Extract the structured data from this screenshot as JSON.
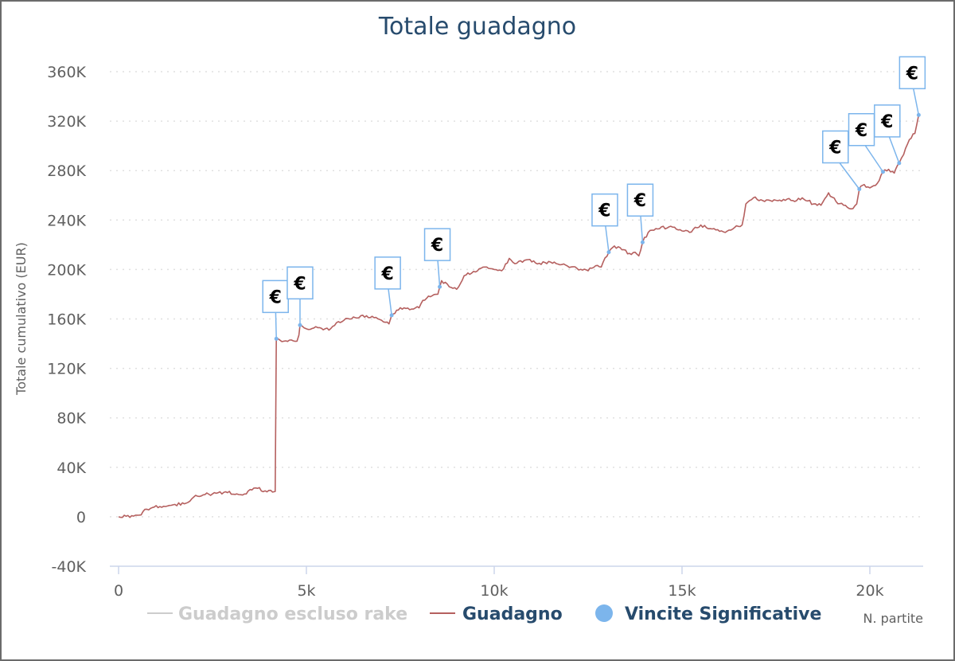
{
  "chart_data": {
    "type": "line",
    "title": "Totale guadagno",
    "ylabel": "Totale cumulativo (EUR)",
    "xlabel": "N. partite",
    "xlim": [
      0,
      21500
    ],
    "ylim": [
      -40000,
      360000
    ],
    "x_ticks": [
      0,
      5000,
      10000,
      15000,
      20000
    ],
    "x_tick_labels": [
      "0",
      "5k",
      "10k",
      "15k",
      "20k"
    ],
    "y_ticks": [
      -40000,
      0,
      40000,
      80000,
      120000,
      160000,
      200000,
      240000,
      280000,
      320000,
      360000
    ],
    "y_tick_labels": [
      "-40K",
      "0",
      "40K",
      "80K",
      "120K",
      "160K",
      "200K",
      "240K",
      "280K",
      "320K",
      "360K"
    ],
    "grid": true,
    "legend_position": "bottom",
    "series": [
      {
        "name": "Guadagno escluso rake",
        "color": "#cccccc",
        "visible": false,
        "points": []
      },
      {
        "name": "Guadagno",
        "color": "#b5605f",
        "visible": true,
        "points": [
          [
            0,
            0
          ],
          [
            400,
            500
          ],
          [
            600,
            1500
          ],
          [
            700,
            6000
          ],
          [
            900,
            7500
          ],
          [
            1200,
            8500
          ],
          [
            1500,
            10000
          ],
          [
            1800,
            11000
          ],
          [
            2000,
            16000
          ],
          [
            2300,
            18000
          ],
          [
            2600,
            19000
          ],
          [
            2900,
            19500
          ],
          [
            3200,
            18000
          ],
          [
            3400,
            18500
          ],
          [
            3500,
            22000
          ],
          [
            3700,
            23000
          ],
          [
            3900,
            21000
          ],
          [
            4100,
            20000
          ],
          [
            4170,
            20500
          ],
          [
            4200,
            144000
          ],
          [
            4400,
            142000
          ],
          [
            4600,
            143000
          ],
          [
            4750,
            142000
          ],
          [
            4800,
            147000
          ],
          [
            4830,
            155000
          ],
          [
            5000,
            152000
          ],
          [
            5300,
            153000
          ],
          [
            5600,
            151000
          ],
          [
            5800,
            157000
          ],
          [
            6000,
            159000
          ],
          [
            6200,
            160000
          ],
          [
            6500,
            163000
          ],
          [
            6800,
            161000
          ],
          [
            7000,
            159000
          ],
          [
            7200,
            156000
          ],
          [
            7270,
            163000
          ],
          [
            7400,
            167000
          ],
          [
            7600,
            169000
          ],
          [
            7800,
            168000
          ],
          [
            8000,
            169000
          ],
          [
            8100,
            175000
          ],
          [
            8300,
            178000
          ],
          [
            8500,
            180000
          ],
          [
            8550,
            186000
          ],
          [
            8600,
            191000
          ],
          [
            8800,
            186000
          ],
          [
            9000,
            184000
          ],
          [
            9200,
            195000
          ],
          [
            9500,
            198000
          ],
          [
            9800,
            202000
          ],
          [
            10000,
            200000
          ],
          [
            10200,
            199000
          ],
          [
            10400,
            209000
          ],
          [
            10600,
            205000
          ],
          [
            10900,
            208000
          ],
          [
            11200,
            205000
          ],
          [
            11500,
            206000
          ],
          [
            11800,
            204000
          ],
          [
            12200,
            201000
          ],
          [
            12500,
            199000
          ],
          [
            12700,
            203000
          ],
          [
            12850,
            202000
          ],
          [
            12900,
            206000
          ],
          [
            13050,
            214000
          ],
          [
            13200,
            219000
          ],
          [
            13400,
            216000
          ],
          [
            13600,
            213000
          ],
          [
            13750,
            214000
          ],
          [
            13850,
            211000
          ],
          [
            13950,
            222000
          ],
          [
            14100,
            230000
          ],
          [
            14400,
            233000
          ],
          [
            14700,
            235000
          ],
          [
            14900,
            232000
          ],
          [
            15200,
            230000
          ],
          [
            15500,
            236000
          ],
          [
            15700,
            233000
          ],
          [
            15900,
            232000
          ],
          [
            16200,
            231000
          ],
          [
            16400,
            234000
          ],
          [
            16600,
            236000
          ],
          [
            16700,
            253000
          ],
          [
            16900,
            258000
          ],
          [
            17200,
            255000
          ],
          [
            17500,
            256000
          ],
          [
            17800,
            257000
          ],
          [
            18000,
            255000
          ],
          [
            18200,
            258000
          ],
          [
            18500,
            253000
          ],
          [
            18700,
            252000
          ],
          [
            18900,
            262000
          ],
          [
            19100,
            255000
          ],
          [
            19300,
            252000
          ],
          [
            19500,
            249000
          ],
          [
            19650,
            253000
          ],
          [
            19720,
            265000
          ],
          [
            19800,
            268000
          ],
          [
            20000,
            266000
          ],
          [
            20150,
            268000
          ],
          [
            20250,
            272000
          ],
          [
            20350,
            279000
          ],
          [
            20500,
            281000
          ],
          [
            20650,
            278000
          ],
          [
            20780,
            286000
          ],
          [
            20900,
            293000
          ],
          [
            21050,
            305000
          ],
          [
            21200,
            310000
          ],
          [
            21300,
            325000
          ]
        ]
      },
      {
        "name": "Vincite Significative",
        "color": "#7cb5ec",
        "visible": true,
        "flag_label": "€",
        "points": [
          [
            4200,
            144000
          ],
          [
            4830,
            155000
          ],
          [
            7270,
            163000
          ],
          [
            8550,
            186000
          ],
          [
            13050,
            214000
          ],
          [
            13950,
            222000
          ],
          [
            19720,
            265000
          ],
          [
            20350,
            279000
          ],
          [
            20780,
            286000
          ],
          [
            21300,
            325000
          ]
        ]
      }
    ]
  }
}
